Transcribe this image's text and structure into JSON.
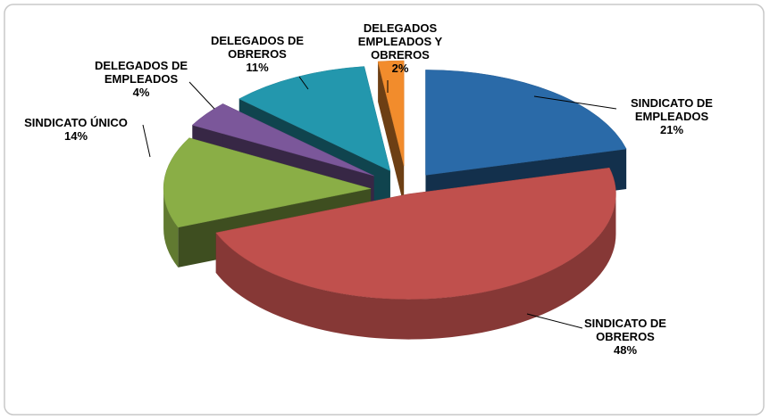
{
  "chart_data": {
    "type": "pie",
    "three_d": true,
    "categories": [
      "SINDICATO DE EMPLEADOS",
      "SINDICATO DE OBREROS",
      "SINDICATO ÚNICO",
      "DELEGADOS DE EMPLEADOS",
      "DELEGADOS DE OBREROS",
      "DELEGADOS EMPLEADOS Y OBREROS"
    ],
    "values": [
      21,
      48,
      14,
      4,
      11,
      2
    ],
    "value_labels": [
      "21%",
      "48%",
      "14%",
      "4%",
      "11%",
      "2%"
    ],
    "colors": [
      "#2a6aa8",
      "#c0504d",
      "#8aae46",
      "#7b579a",
      "#2397ad",
      "#f28c2c"
    ]
  }
}
